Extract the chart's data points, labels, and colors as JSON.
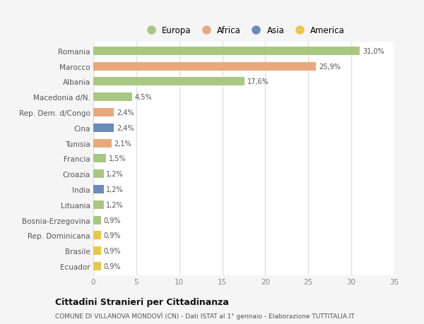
{
  "categories": [
    "Romania",
    "Marocco",
    "Albania",
    "Macedonia d/N.",
    "Rep. Dem. d/Congo",
    "Cina",
    "Tunisia",
    "Francia",
    "Croazia",
    "India",
    "Lituania",
    "Bosnia-Erzegovina",
    "Rep. Dominicana",
    "Brasile",
    "Ecuador"
  ],
  "values": [
    31.0,
    25.9,
    17.6,
    4.5,
    2.4,
    2.4,
    2.1,
    1.5,
    1.2,
    1.2,
    1.2,
    0.9,
    0.9,
    0.9,
    0.9
  ],
  "labels": [
    "31,0%",
    "25,9%",
    "17,6%",
    "4,5%",
    "2,4%",
    "2,4%",
    "2,1%",
    "1,5%",
    "1,2%",
    "1,2%",
    "1,2%",
    "0,9%",
    "0,9%",
    "0,9%",
    "0,9%"
  ],
  "colors": [
    "#a8c882",
    "#e8a87c",
    "#a8c882",
    "#a8c882",
    "#e8a87c",
    "#6b8cba",
    "#e8a87c",
    "#a8c882",
    "#a8c882",
    "#6b8cba",
    "#a8c882",
    "#a8c882",
    "#e8c84a",
    "#e8c84a",
    "#e8c84a"
  ],
  "legend_labels": [
    "Europa",
    "Africa",
    "Asia",
    "America"
  ],
  "legend_colors": [
    "#a8c882",
    "#e8a87c",
    "#6b8cba",
    "#e8c84a"
  ],
  "title": "Cittadini Stranieri per Cittadinanza",
  "subtitle": "COMUNE DI VILLANOVA MONDOVÌ (CN) - Dati ISTAT al 1° gennaio - Elaborazione TUTTITALIA.IT",
  "xlim": [
    0,
    35
  ],
  "xticks": [
    0,
    5,
    10,
    15,
    20,
    25,
    30,
    35
  ],
  "plot_bg": "#ffffff",
  "fig_bg": "#f5f5f5",
  "grid_color": "#e0e0e0",
  "bar_height": 0.55
}
